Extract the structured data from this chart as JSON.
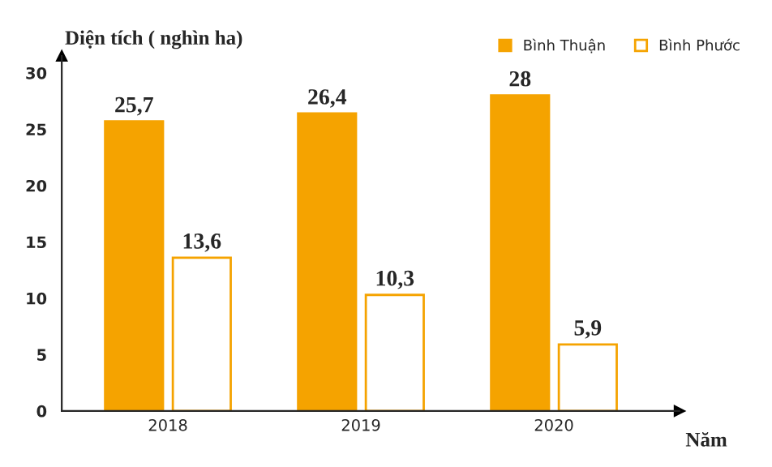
{
  "chart_data": {
    "type": "bar",
    "ylabel": "Diện tích ( nghìn ha)",
    "xlabel": "Năm",
    "categories": [
      "2018",
      "2019",
      "2020"
    ],
    "series": [
      {
        "name": "Bình Thuận",
        "color": "#f5a300",
        "values": [
          25.7,
          26.4,
          28
        ],
        "value_labels": [
          "25,7",
          "26,4",
          "28"
        ]
      },
      {
        "name": "Bình Phước",
        "color": "#ffffff",
        "values": [
          13.6,
          10.3,
          5.9
        ],
        "value_labels": [
          "13,6",
          "10,3",
          "5,9"
        ]
      }
    ],
    "ylim": [
      0,
      31.5
    ],
    "yticks": [
      0,
      5,
      10,
      15,
      20,
      25,
      30
    ],
    "legend": "top right",
    "grid": false
  }
}
